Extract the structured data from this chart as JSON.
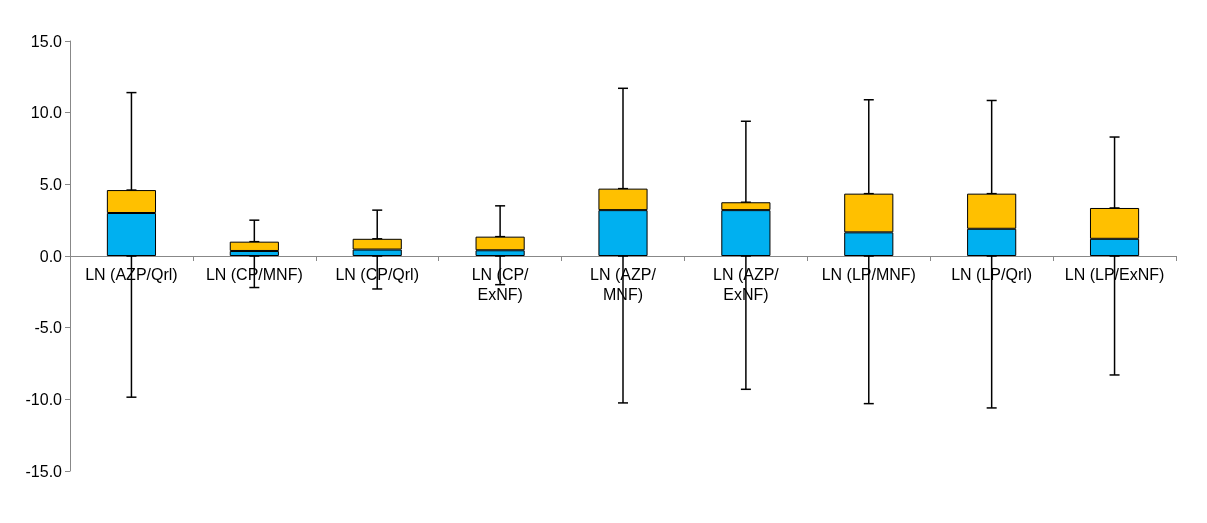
{
  "chart_data": {
    "type": "bar",
    "stacked": true,
    "categories": [
      "LN (AZP/Qrl)",
      "LN (CP/MNF)",
      "LN (CP/Qrl)",
      "LN (CP/ExNF)",
      "LN (AZP/MNF)",
      "LN (AZP/ExNF)",
      "LN (LP/MNF)",
      "LN (LP/Qrl)",
      "LN (LP/ExNF)"
    ],
    "series": [
      {
        "color": "#00b0f0",
        "values": [
          3.0,
          0.35,
          0.45,
          0.4,
          3.2,
          3.2,
          1.65,
          1.9,
          1.2
        ],
        "errors": [
          [
            -9.85,
            0
          ],
          [
            -2.2,
            0
          ],
          [
            -2.3,
            0
          ],
          [
            -2.0,
            0
          ],
          [
            -10.25,
            0
          ],
          [
            -9.3,
            0
          ],
          [
            -10.3,
            0
          ],
          [
            -10.6,
            0
          ],
          [
            -8.3,
            0
          ]
        ]
      },
      {
        "color": "#ffc000",
        "values": [
          1.6,
          0.65,
          0.75,
          0.95,
          1.5,
          0.55,
          2.7,
          2.45,
          2.15
        ],
        "errors": [
          [
            4.6,
            11.4
          ],
          [
            1.0,
            2.5
          ],
          [
            1.2,
            3.2
          ],
          [
            1.35,
            3.5
          ],
          [
            4.7,
            11.7
          ],
          [
            3.75,
            9.4
          ],
          [
            4.35,
            10.9
          ],
          [
            4.35,
            10.85
          ],
          [
            3.35,
            8.3
          ]
        ]
      }
    ],
    "ylim": [
      -15,
      15
    ],
    "yticks": [
      {
        "value": -15,
        "label": "-15.0"
      },
      {
        "value": -10,
        "label": "-10.0"
      },
      {
        "value": -5,
        "label": "-5.0"
      },
      {
        "value": 0,
        "label": "0.0"
      },
      {
        "value": 5,
        "label": "5.0"
      },
      {
        "value": 10,
        "label": "10.0"
      },
      {
        "value": 15,
        "label": "15.0"
      }
    ],
    "grid": false
  }
}
